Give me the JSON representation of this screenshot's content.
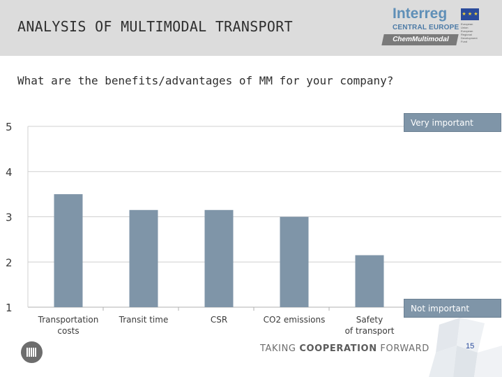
{
  "header": {
    "title": "ANALYSIS OF MULTIMODAL TRANSPORT",
    "logo": {
      "brand": "Interreg",
      "program": "CENTRAL EUROPE",
      "eu_text": "European Union European Regional Development Fund",
      "project": "ChemMultimodal"
    }
  },
  "question": "What are the benefits/advantages of MM for your company?",
  "legend": {
    "top": "Very important",
    "bottom": "Not important"
  },
  "chart_data": {
    "type": "bar",
    "title": "What are the benefits/advantages of MM for your company?",
    "categories": [
      "Transportation costs",
      "Transit time",
      "CSR",
      "CO2 emissions",
      "Safety of transport"
    ],
    "values": [
      3.5,
      3.15,
      3.15,
      3.0,
      2.15
    ],
    "ylim": [
      1,
      5
    ],
    "yticks": [
      1,
      2,
      3,
      4,
      5
    ],
    "xlabel": "",
    "ylabel": "",
    "grid": true,
    "colors": {
      "bar": "#7f95a8",
      "grid": "#d0d0d0",
      "axis": "#b0b0b0",
      "text": "#3a3a3a"
    }
  },
  "footer": {
    "tagline_pre": "TAKING ",
    "tagline_bold": "COOPERATION",
    "tagline_post": " FORWARD",
    "page": "15"
  }
}
